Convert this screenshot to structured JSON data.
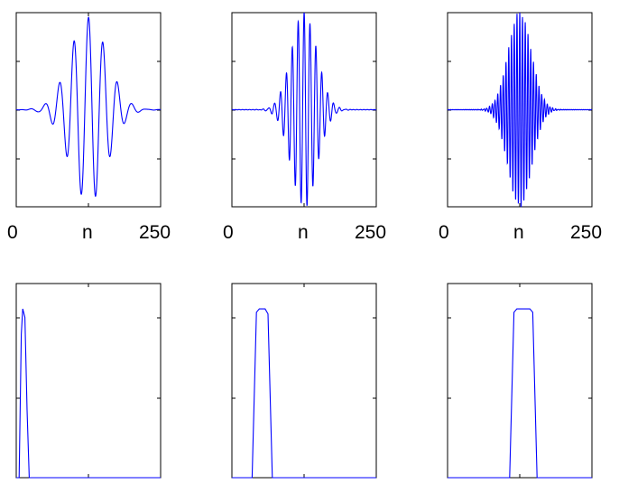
{
  "chart_data": [
    {
      "type": "line",
      "panel": "top-left",
      "signal": "windowed sinc impulse response (low-frequency band)",
      "x_range": [
        0,
        250
      ],
      "y_range": [
        -1.0,
        1.0
      ],
      "center_n": 125,
      "frequency_cycles_per_sample": 0.04,
      "envelope_width": 32,
      "amplitude": 0.95,
      "xlabel": "n",
      "xticks": [
        0,
        125,
        250
      ],
      "xtick_labels": [
        "0",
        "",
        "250"
      ],
      "grid": false,
      "color": "#0000ff"
    },
    {
      "type": "line",
      "panel": "top-middle",
      "signal": "windowed sinc impulse response (mid-frequency band)",
      "x_range": [
        0,
        250
      ],
      "y_range": [
        -1.0,
        1.0
      ],
      "center_n": 125,
      "frequency_cycles_per_sample": 0.098,
      "envelope_width": 22,
      "amplitude": 1.0,
      "xlabel": "n",
      "xticks": [
        0,
        125,
        250
      ],
      "xtick_labels": [
        "0",
        "",
        "250"
      ],
      "grid": false,
      "color": "#0000ff"
    },
    {
      "type": "line",
      "panel": "top-right",
      "signal": "windowed sinc impulse response (high-frequency band)",
      "x_range": [
        0,
        250
      ],
      "y_range": [
        -1.0,
        1.0
      ],
      "center_n": 125,
      "frequency_cycles_per_sample": 0.21,
      "envelope_width": 20,
      "amplitude": 1.0,
      "xlabel": "n",
      "xticks": [
        0,
        125,
        250
      ],
      "xtick_labels": [
        "0",
        "",
        "250"
      ],
      "grid": false,
      "color": "#0000ff"
    },
    {
      "type": "line",
      "panel": "bottom-left",
      "signal": "frequency response magnitude",
      "x_range": [
        0,
        1
      ],
      "y_range": [
        0,
        1.15
      ],
      "points": [
        [
          0,
          0
        ],
        [
          0.02,
          0.0
        ],
        [
          0.035,
          0.85
        ],
        [
          0.045,
          1.0
        ],
        [
          0.06,
          0.95
        ],
        [
          0.075,
          0.4
        ],
        [
          0.09,
          0.0
        ],
        [
          1,
          0
        ]
      ],
      "grid": false,
      "color": "#0000ff"
    },
    {
      "type": "line",
      "panel": "bottom-middle",
      "signal": "frequency response magnitude",
      "x_range": [
        0,
        1
      ],
      "y_range": [
        0,
        1.15
      ],
      "points": [
        [
          0,
          0
        ],
        [
          0.14,
          0.0
        ],
        [
          0.17,
          0.98
        ],
        [
          0.19,
          1.0
        ],
        [
          0.23,
          1.0
        ],
        [
          0.25,
          0.97
        ],
        [
          0.28,
          0.0
        ],
        [
          1,
          0
        ]
      ],
      "grid": false,
      "color": "#0000ff"
    },
    {
      "type": "line",
      "panel": "bottom-right",
      "signal": "frequency response magnitude",
      "x_range": [
        0,
        1
      ],
      "y_range": [
        0,
        1.15
      ],
      "points": [
        [
          0,
          0
        ],
        [
          0.43,
          0.0
        ],
        [
          0.46,
          0.98
        ],
        [
          0.48,
          1.0
        ],
        [
          0.57,
          1.0
        ],
        [
          0.59,
          0.98
        ],
        [
          0.62,
          0.0
        ],
        [
          1,
          0
        ]
      ],
      "grid": false,
      "color": "#0000ff"
    }
  ]
}
